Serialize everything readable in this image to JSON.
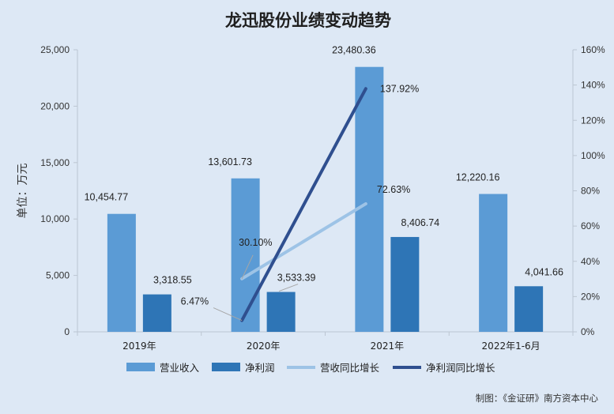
{
  "chart_data": {
    "type": "bar",
    "title": "龙迅股份业绩变动趋势",
    "ylabel": "单位：万元",
    "categories": [
      "2019年",
      "2020年",
      "2021年",
      "2022年1-6月"
    ],
    "ylim": [
      0,
      25000
    ],
    "y_ticks": [
      "0",
      "5,000",
      "10,000",
      "15,000",
      "20,000",
      "25,000"
    ],
    "y2lim": [
      0,
      160
    ],
    "y2_ticks": [
      "0%",
      "20%",
      "40%",
      "60%",
      "80%",
      "100%",
      "120%",
      "140%",
      "160%"
    ],
    "series": [
      {
        "name": "营业收入",
        "kind": "bar",
        "axis": "left",
        "color": "#5b9bd5",
        "values": [
          10454.77,
          13601.73,
          23480.36,
          12220.16
        ],
        "labels": [
          "10,454.77",
          "13,601.73",
          "23,480.36",
          "12,220.16"
        ]
      },
      {
        "name": "净利润",
        "kind": "bar",
        "axis": "left",
        "color": "#2e75b6",
        "values": [
          3318.55,
          3533.39,
          8406.74,
          4041.66
        ],
        "labels": [
          "3,318.55",
          "3,533.39",
          "8,406.74",
          "4,041.66"
        ]
      },
      {
        "name": "营收同比增长",
        "kind": "line",
        "axis": "right",
        "color": "#9dc3e6",
        "values": [
          null,
          30.1,
          72.63,
          null
        ],
        "labels": [
          "",
          "30.10%",
          "72.63%",
          ""
        ]
      },
      {
        "name": "净利润同比增长",
        "kind": "line",
        "axis": "right",
        "color": "#2f4f8f",
        "values": [
          null,
          6.47,
          137.92,
          null
        ],
        "labels": [
          "",
          "6.47%",
          "137.92%",
          ""
        ]
      }
    ],
    "legend_position": "bottom",
    "grid": false
  },
  "source": "制图：《金证研》南方资本中心"
}
